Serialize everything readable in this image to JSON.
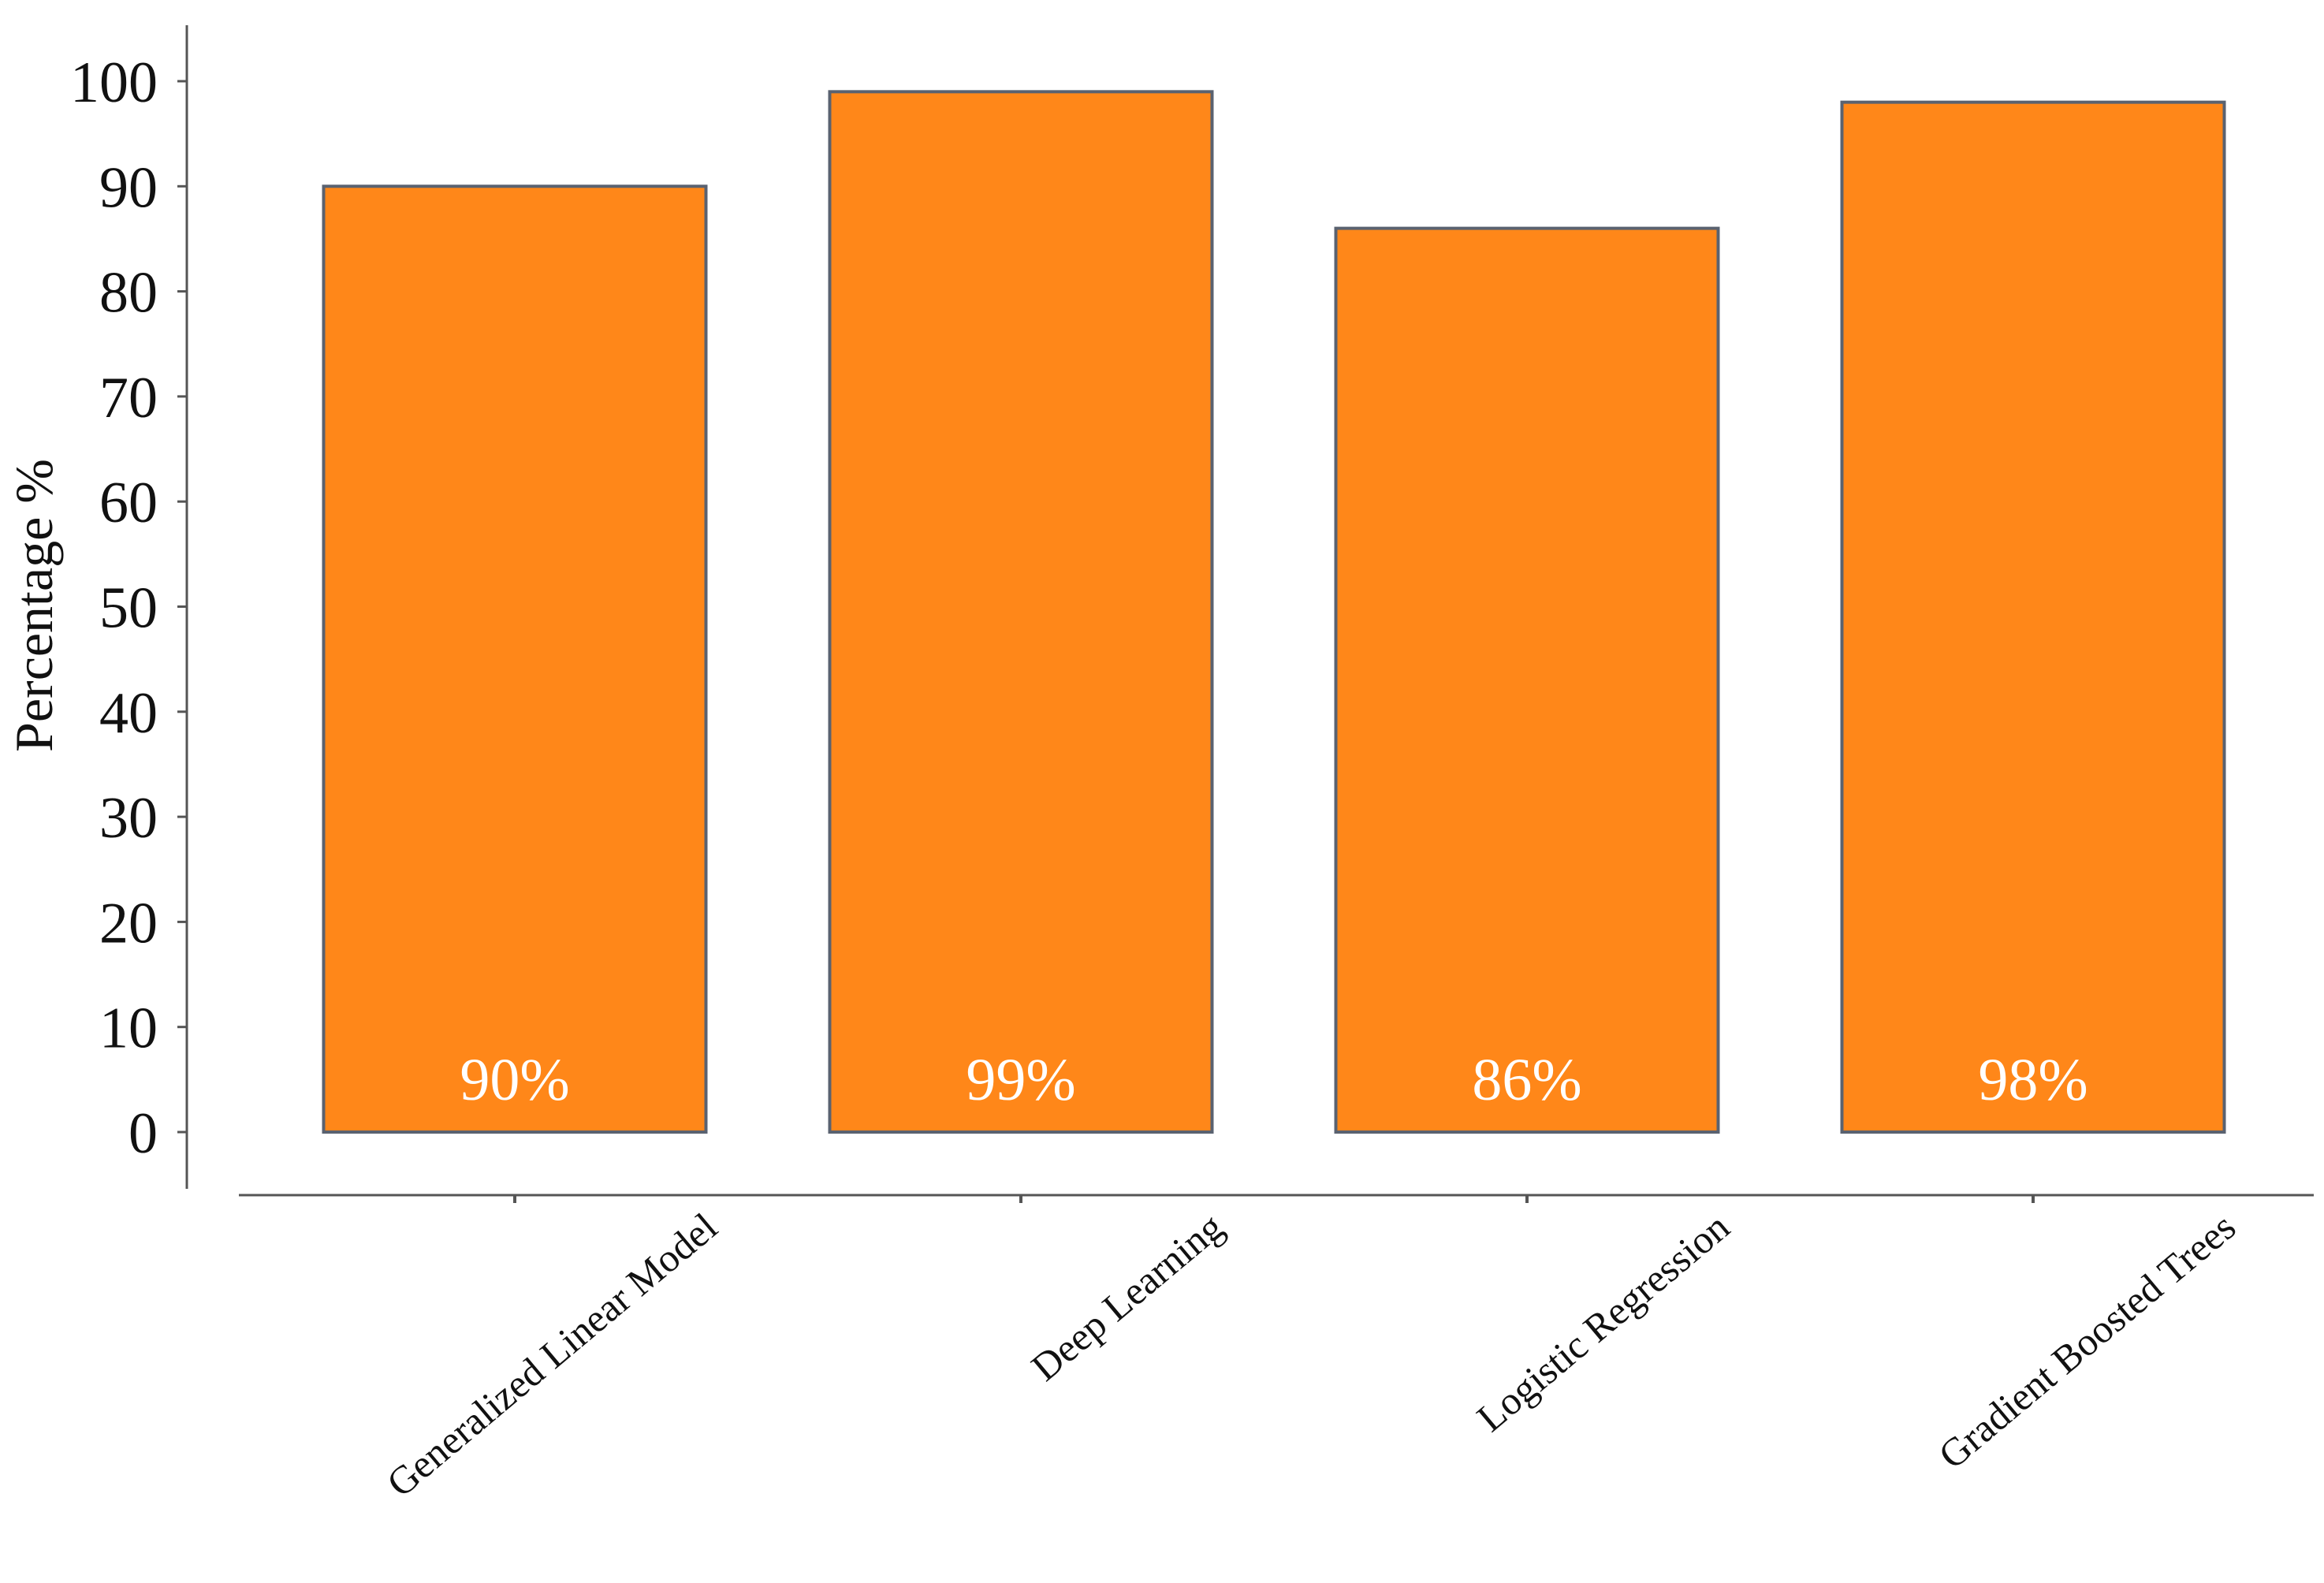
{
  "chart_data": {
    "type": "bar",
    "title": "",
    "xlabel": "",
    "ylabel": "Percentage %",
    "ylim": [
      0,
      100
    ],
    "yticks": [
      0,
      10,
      20,
      30,
      40,
      50,
      60,
      70,
      80,
      90,
      100
    ],
    "categories": [
      "Generalized Linear Model",
      "Deep Learning",
      "Logistic Regression",
      "Gradient Boosted Trees"
    ],
    "values": [
      90,
      99,
      86,
      98
    ],
    "value_labels": [
      "90%",
      "99%",
      "86%",
      "98%"
    ],
    "grid": false,
    "legend": "none",
    "colors": {
      "bar_fill": "#ff8719",
      "bar_stroke": "#5a6270",
      "axis": "#555555",
      "bar_label": "#ffffff"
    }
  }
}
